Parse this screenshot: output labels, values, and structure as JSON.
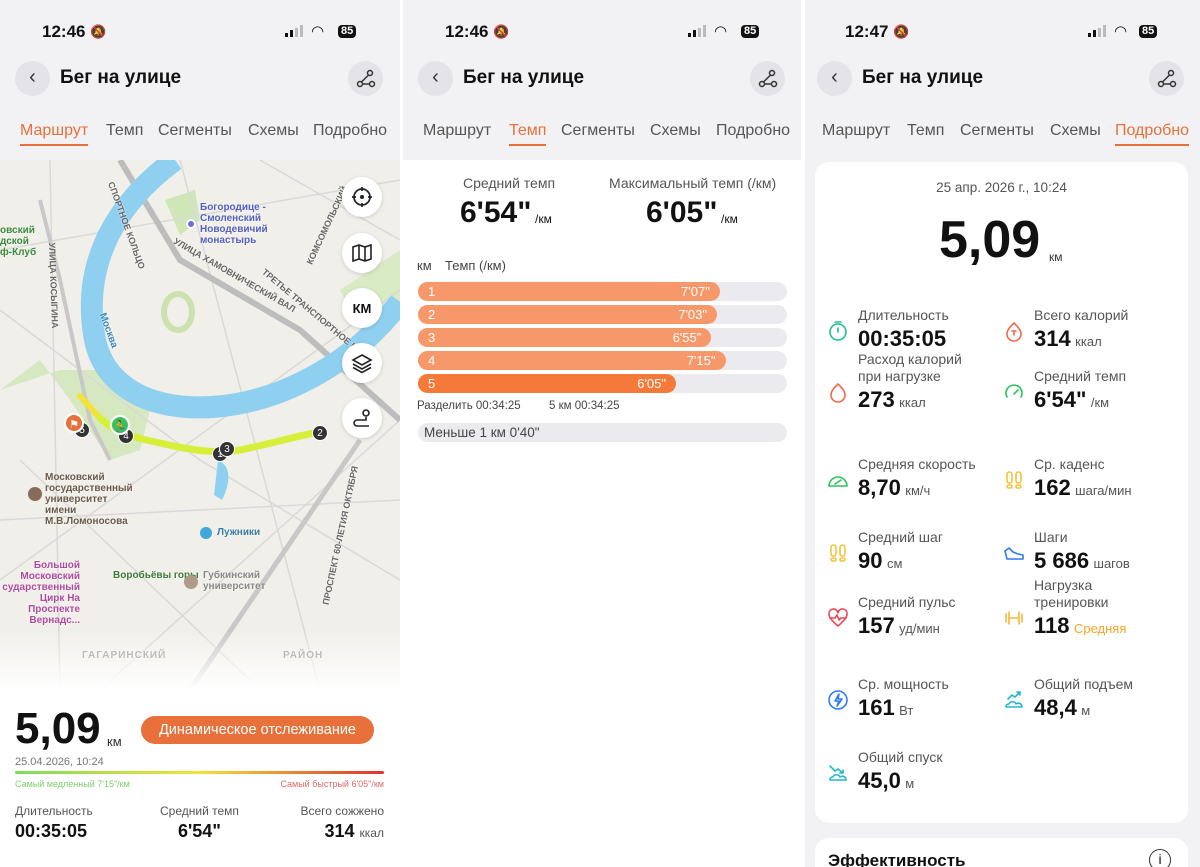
{
  "screens": [
    {
      "time": "12:46",
      "battery": "85",
      "title": "Бег на улице",
      "tabs": [
        "Маршрут",
        "Темп",
        "Сегменты",
        "Схемы",
        "Подробно"
      ]
    },
    {
      "time": "12:46",
      "battery": "85",
      "title": "Бег на улице",
      "tabs": [
        "Маршрут",
        "Темп",
        "Сегменты",
        "Схемы",
        "Подробно"
      ]
    },
    {
      "time": "12:47",
      "battery": "85",
      "title": "Бег на улице",
      "tabs": [
        "Маршрут",
        "Темп",
        "Сегменты",
        "Схемы",
        "Подробно"
      ]
    }
  ],
  "route": {
    "map": {
      "labels": [
        "Богородице -\nСмоленский\nНоводевичий\nмонастырь",
        "Лужники",
        "Воробьёвы горы",
        "Московский\nгосударственный\nуниверситет\nимени\nМ.В.Ломоносова",
        "Большой\nМосковский\nсударственный\nЦирк На\nПроспекте\nВернадс...",
        "Губкинский\nуниверситет",
        "Москва",
        "УЛИЦА ХАМОВНИЧЕСКИЙ ВАЛ",
        "ТРЕТЬЕ ТРАНСПОРТНОЕ КОЛЬЦО",
        "УЛИЦА КОСЫГИНА",
        "КОМСОМОЛЬСКИЙ",
        "ПРОСПЕКТ 60-ЛЕТИЯ ОКТЯБРЯ",
        "ГАГАРИНСКИЙ",
        "РАЙОН",
        "СПОРТНОЕ КОЛЬЦО",
        "овский\nдской\nф-Клуб"
      ],
      "km_button": "КМ",
      "markers": [
        "1",
        "2",
        "3",
        "4",
        "5"
      ]
    },
    "distance": "5,09",
    "distance_unit": "км",
    "dynamic_button": "Динамическое отслеживание",
    "date": "25.04.2026, 10:24",
    "slowest": "Самый медленный 7'15\"/км",
    "fastest": "Самый быстрый 6'05\"/км",
    "gradient_colors": [
      "#7ddc5a",
      "#f2e23a",
      "#e03030"
    ],
    "stats": [
      {
        "label": "Длительность",
        "value": "00:35:05",
        "unit": ""
      },
      {
        "label": "Средний темп",
        "value": "6'54\"",
        "unit": ""
      },
      {
        "label": "Всего сожжено",
        "value": "314",
        "unit": "ккал"
      }
    ]
  },
  "pace": {
    "avg_label": "Средний темп",
    "avg_value": "6'54\"",
    "avg_unit": "/км",
    "max_label": "Максимальный темп (/км)",
    "max_value": "6'05\"",
    "max_unit": "/км",
    "col_km": "км",
    "col_pace": "Темп (/км)",
    "splits": [
      {
        "km": "1",
        "pace": "7'07\""
      },
      {
        "km": "2",
        "pace": "7'03\""
      },
      {
        "km": "3",
        "pace": "6'55\""
      },
      {
        "km": "4",
        "pace": "7'15\""
      },
      {
        "km": "5",
        "pace": "6'05\"",
        "best": true
      }
    ],
    "split_total": "Разделить 00:34:25",
    "split_5km": "5 км 00:34:25",
    "remainder": "Меньше 1 км 0'40\"",
    "bar_color": "#f7986a",
    "best_color": "#f57a3a"
  },
  "details": {
    "date": "25 апр. 2026 г., 10:24",
    "distance": "5,09",
    "distance_unit": "км",
    "items": [
      {
        "label": "Длительность",
        "value": "00:35:05",
        "unit": "",
        "icon": "stopwatch-icon",
        "color": "#1fbf8f"
      },
      {
        "label": "Всего калорий",
        "value": "314",
        "unit": "ккал",
        "icon": "calorie-icon",
        "color": "#f06a4a"
      },
      {
        "label": "Расход калорий\nпри нагрузке",
        "value": "273",
        "unit": "ккал",
        "icon": "flame-icon",
        "color": "#f06a4a"
      },
      {
        "label": "Средний темп",
        "value": "6'54\"",
        "unit": "/км",
        "icon": "pace-gauge-icon",
        "color": "#2cc35a"
      },
      {
        "label": "Средняя скорость",
        "value": "8,70",
        "unit": "км/ч",
        "icon": "speedometer-icon",
        "color": "#2cc35a"
      },
      {
        "label": "Ср. каденс",
        "value": "162",
        "unit": "шага/мин",
        "icon": "footprints-icon",
        "color": "#f5c23a"
      },
      {
        "label": "Средний шаг",
        "value": "90",
        "unit": "см",
        "icon": "footprints-icon",
        "color": "#f5c23a"
      },
      {
        "label": "Шаги",
        "value": "5 686",
        "unit": "шагов",
        "icon": "shoe-icon",
        "color": "#2d7cf0"
      },
      {
        "label": "Средний пульс",
        "value": "157",
        "unit": "уд/мин",
        "icon": "heart-rate-icon",
        "color": "#ea4a5a"
      },
      {
        "label": "Нагрузка\nтренировки",
        "value": "118",
        "unit": "Средняя",
        "icon": "dumbbell-icon",
        "color": "#f5b83a"
      },
      {
        "label": "Ср. мощность",
        "value": "161",
        "unit": "Вт",
        "icon": "power-icon",
        "color": "#2d7cf0"
      },
      {
        "label": "Общий подъем",
        "value": "48,4",
        "unit": "м",
        "icon": "ascent-icon",
        "color": "#22b8c8"
      },
      {
        "label": "Общий спуск",
        "value": "45,0",
        "unit": "м",
        "icon": "descent-icon",
        "color": "#22b8c8"
      }
    ],
    "efficiency_title": "Эффективность"
  }
}
